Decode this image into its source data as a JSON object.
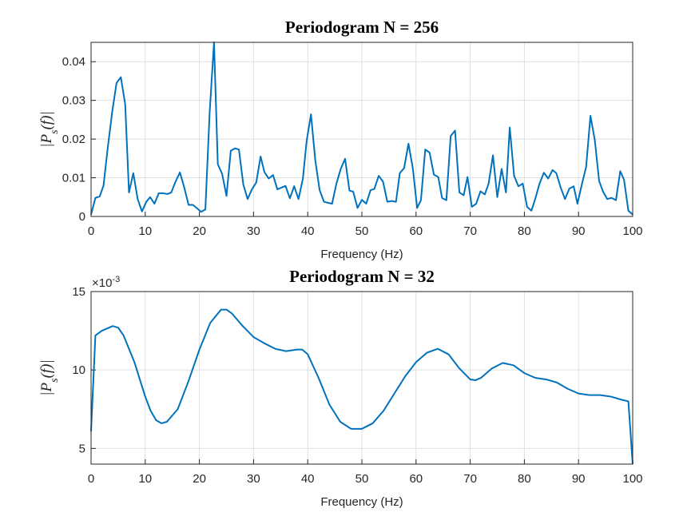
{
  "chart_data": [
    {
      "type": "line",
      "title": "Periodogram N = 256",
      "xlabel": "Frequency (Hz)",
      "ylabel": [
        "|P",
        "s",
        "(f)|"
      ],
      "x": [
        0,
        0.8,
        1.6,
        2.3,
        3.1,
        3.9,
        4.7,
        5.5,
        6.3,
        7.0,
        7.8,
        8.6,
        9.4,
        10.2,
        10.9,
        11.7,
        12.5,
        13.3,
        14.1,
        14.8,
        15.6,
        16.4,
        17.2,
        18.0,
        18.8,
        19.5,
        20.3,
        21.1,
        21.9,
        22.7,
        23.4,
        24.2,
        25.0,
        25.8,
        26.6,
        27.3,
        28.1,
        28.9,
        29.7,
        30.5,
        31.3,
        32.0,
        32.8,
        33.6,
        34.4,
        35.2,
        35.9,
        36.7,
        37.5,
        38.3,
        39.1,
        39.8,
        40.6,
        41.4,
        42.2,
        43.0,
        43.8,
        44.5,
        45.3,
        46.1,
        46.9,
        47.7,
        48.4,
        49.2,
        50.0,
        50.8,
        51.6,
        52.3,
        53.1,
        53.9,
        54.7,
        55.5,
        56.3,
        57.0,
        57.8,
        58.6,
        59.4,
        60.2,
        60.9,
        61.7,
        62.5,
        63.3,
        64.1,
        64.8,
        65.6,
        66.4,
        67.2,
        68.0,
        68.8,
        69.5,
        70.3,
        71.1,
        71.9,
        72.7,
        73.4,
        74.2,
        75.0,
        75.8,
        76.6,
        77.3,
        78.1,
        78.9,
        79.7,
        80.5,
        81.3,
        82.0,
        82.8,
        83.6,
        84.4,
        85.2,
        85.9,
        86.7,
        87.5,
        88.3,
        89.1,
        89.8,
        90.6,
        91.4,
        92.2,
        93.0,
        93.8,
        94.5,
        95.3,
        96.1,
        96.9,
        97.7,
        98.4,
        99.2,
        100
      ],
      "values": [
        0.0005,
        0.0048,
        0.0052,
        0.008,
        0.018,
        0.027,
        0.0345,
        0.036,
        0.029,
        0.0062,
        0.0112,
        0.0045,
        0.0013,
        0.0038,
        0.005,
        0.0033,
        0.006,
        0.006,
        0.0058,
        0.0062,
        0.009,
        0.0114,
        0.0075,
        0.003,
        0.003,
        0.0022,
        0.0012,
        0.0018,
        0.027,
        0.045,
        0.0135,
        0.011,
        0.0053,
        0.017,
        0.0176,
        0.0173,
        0.0083,
        0.0045,
        0.007,
        0.0088,
        0.0155,
        0.0115,
        0.0098,
        0.0107,
        0.007,
        0.0075,
        0.0079,
        0.0047,
        0.0078,
        0.0045,
        0.0097,
        0.0195,
        0.0264,
        0.0145,
        0.0068,
        0.0038,
        0.0035,
        0.0033,
        0.0085,
        0.0123,
        0.0149,
        0.0067,
        0.0064,
        0.0022,
        0.0043,
        0.0033,
        0.0068,
        0.0071,
        0.0105,
        0.009,
        0.0038,
        0.004,
        0.0038,
        0.0112,
        0.0125,
        0.0188,
        0.0125,
        0.0022,
        0.0042,
        0.0173,
        0.0165,
        0.0108,
        0.0102,
        0.0048,
        0.0042,
        0.0208,
        0.0222,
        0.0062,
        0.0055,
        0.0102,
        0.0025,
        0.0033,
        0.0065,
        0.0057,
        0.0085,
        0.0158,
        0.005,
        0.0123,
        0.0062,
        0.023,
        0.0105,
        0.0078,
        0.0085,
        0.0025,
        0.0015,
        0.0045,
        0.0085,
        0.0113,
        0.0098,
        0.012,
        0.0112,
        0.0075,
        0.0045,
        0.0072,
        0.0078,
        0.0033,
        0.0082,
        0.0128,
        0.026,
        0.0198,
        0.0092,
        0.0065,
        0.0045,
        0.0048,
        0.0042,
        0.0117,
        0.0095,
        0.0015,
        0.0005
      ],
      "color": "#0072bd",
      "xlim": [
        0,
        100
      ],
      "ylim": [
        0,
        0.045
      ],
      "xticks": [
        0,
        10,
        20,
        30,
        40,
        50,
        60,
        70,
        80,
        90,
        100
      ],
      "yticks": [
        0,
        0.01,
        0.02,
        0.03,
        0.04
      ],
      "grid": true
    },
    {
      "type": "line",
      "title": "Periodogram N = 32",
      "xlabel": "Frequency (Hz)",
      "ylabel": [
        "|P",
        "s",
        "(f)|"
      ],
      "y_exponent": {
        "base": "×10",
        "power": "-3"
      },
      "x": [
        0,
        0.8,
        2,
        4,
        5,
        6,
        8,
        10,
        11,
        12,
        13,
        14,
        16,
        18,
        20,
        22,
        24,
        25,
        26,
        28,
        30,
        32,
        34,
        36,
        38,
        39,
        40,
        42,
        44,
        46,
        48,
        50,
        52,
        54,
        56,
        58,
        60,
        62,
        64,
        66,
        68,
        70,
        71,
        72,
        74,
        76,
        78,
        80,
        82,
        84,
        86,
        88,
        90,
        92,
        94,
        96,
        98,
        99.2,
        100
      ],
      "values": [
        6.1,
        12.2,
        12.5,
        12.8,
        12.7,
        12.2,
        10.5,
        8.3,
        7.4,
        6.8,
        6.6,
        6.7,
        7.5,
        9.3,
        11.3,
        13.0,
        13.85,
        13.85,
        13.6,
        12.8,
        12.1,
        11.7,
        11.35,
        11.2,
        11.3,
        11.3,
        11.0,
        9.5,
        7.8,
        6.7,
        6.25,
        6.25,
        6.6,
        7.4,
        8.5,
        9.6,
        10.5,
        11.1,
        11.35,
        11.0,
        10.1,
        9.4,
        9.35,
        9.5,
        10.1,
        10.45,
        10.3,
        9.8,
        9.5,
        9.4,
        9.2,
        8.8,
        8.5,
        8.4,
        8.4,
        8.3,
        8.1,
        8.0,
        4.0
      ],
      "color": "#0072bd",
      "xlim": [
        0,
        100
      ],
      "ylim": [
        4,
        15
      ],
      "xticks": [
        0,
        10,
        20,
        30,
        40,
        50,
        60,
        70,
        80,
        90,
        100
      ],
      "yticks": [
        5,
        10,
        15
      ],
      "grid": true
    }
  ]
}
